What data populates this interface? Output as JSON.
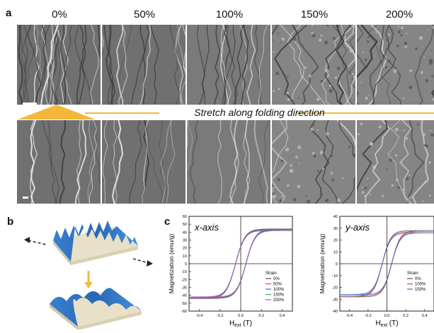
{
  "figure": {
    "panel_a": {
      "letter": "a",
      "strains": [
        "0%",
        "50%",
        "100%",
        "150%",
        "200%"
      ],
      "stretch_text": "Stretch along folding direction"
    },
    "panel_b": {
      "letter": "b"
    },
    "panel_c": {
      "letter": "c"
    }
  },
  "chart_data": [
    {
      "type": "line",
      "title": "x-axis",
      "xlabel": "H",
      "xlabel_sub": "ext",
      "xlabel_unit": "(T)",
      "ylabel": "Magnetization (emu/g)",
      "xlim": [
        -0.5,
        0.5
      ],
      "ylim": [
        -60,
        60
      ],
      "xticks": [
        -0.4,
        -0.2,
        0.0,
        0.2,
        0.4
      ],
      "yticks": [
        -60,
        -50,
        -40,
        -30,
        -20,
        -10,
        0,
        10,
        20,
        30,
        40,
        50,
        60
      ],
      "legend_title": "Strain",
      "legend_position": "bottom-right",
      "series": [
        {
          "name": "0%",
          "color": "#555555",
          "Ms": 44,
          "Hc": 0.05
        },
        {
          "name": "50%",
          "color": "#e8344a",
          "Ms": 43.5,
          "Hc": 0.05
        },
        {
          "name": "100%",
          "color": "#2f6fd6",
          "Ms": 43,
          "Hc": 0.05
        },
        {
          "name": "150%",
          "color": "#3aa86b",
          "Ms": 42.5,
          "Hc": 0.05
        },
        {
          "name": "200%",
          "color": "#b04fc4",
          "Ms": 42,
          "Hc": 0.05
        }
      ]
    },
    {
      "type": "line",
      "title": "y-axis",
      "xlabel": "H",
      "xlabel_sub": "ext",
      "xlabel_unit": "(T)",
      "ylabel": "Magnetization (emu/g)",
      "xlim": [
        -0.5,
        0.5
      ],
      "ylim": [
        -40,
        40
      ],
      "xticks": [
        -0.4,
        -0.2,
        0.0,
        0.2,
        0.4
      ],
      "yticks": [
        -40,
        -30,
        -20,
        -10,
        0,
        10,
        20,
        30,
        40
      ],
      "legend_title": "Strain",
      "legend_position": "bottom-right",
      "series": [
        {
          "name": "0%",
          "color": "#555555",
          "Ms": 28,
          "Hc": 0.05
        },
        {
          "name": "100%",
          "color": "#e8344a",
          "Ms": 27,
          "Hc": 0.05
        },
        {
          "name": "150%",
          "color": "#2f6fd6",
          "Ms": 26,
          "Hc": 0.05
        }
      ]
    }
  ]
}
